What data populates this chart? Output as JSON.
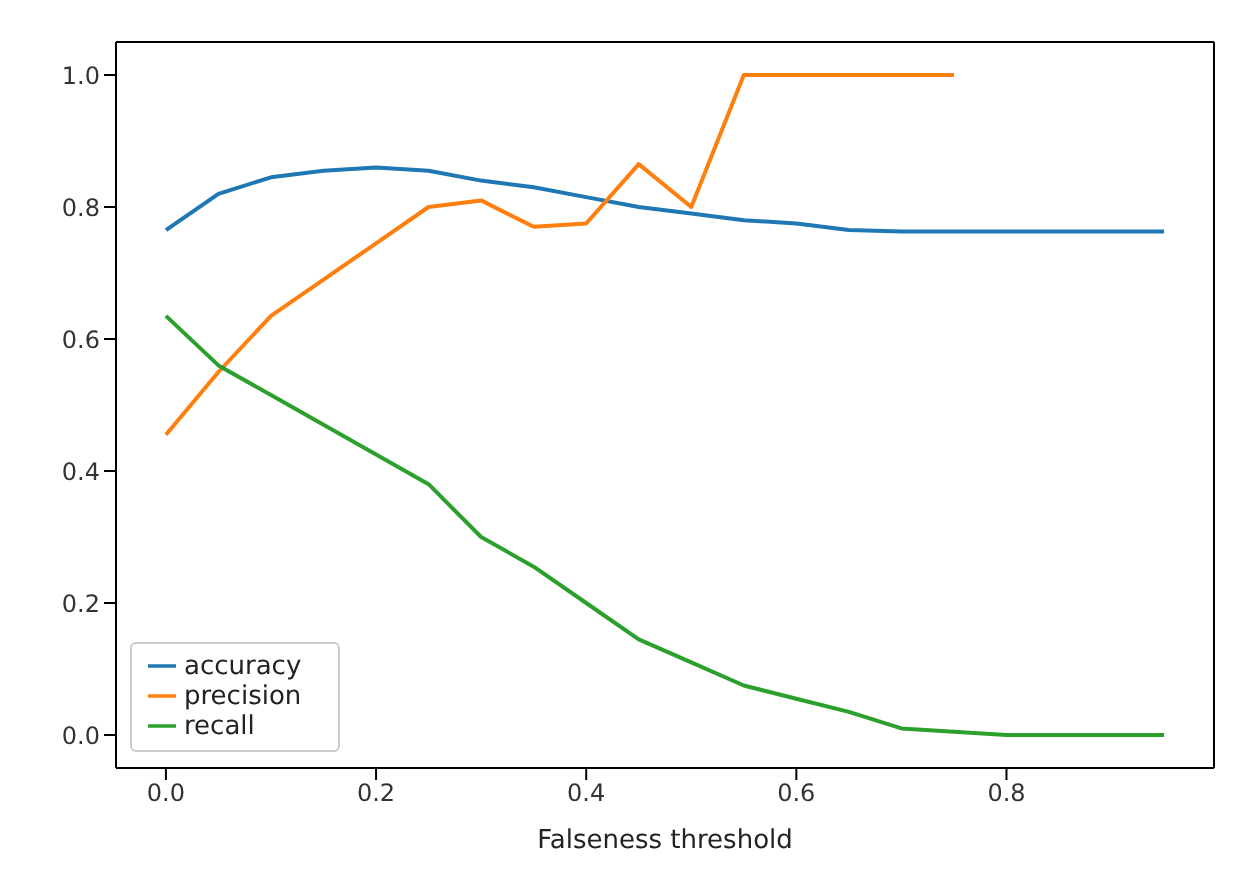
{
  "chart_data": {
    "type": "line",
    "xlabel": "Falseness threshold",
    "x": [
      0,
      0.05,
      0.1,
      0.15,
      0.2,
      0.25,
      0.3,
      0.35,
      0.4,
      0.45,
      0.5,
      0.55,
      0.6,
      0.65,
      0.7,
      0.75,
      0.8,
      0.85,
      0.9,
      0.95
    ],
    "series": [
      {
        "name": "accuracy",
        "color": "#1f77b4",
        "values": [
          0.765,
          0.82,
          0.845,
          0.855,
          0.86,
          0.855,
          0.84,
          0.83,
          0.815,
          0.8,
          0.79,
          0.78,
          0.775,
          0.765,
          0.763,
          0.763,
          0.763,
          0.763,
          0.763,
          0.763
        ]
      },
      {
        "name": "precision",
        "color": "#ff7f0e",
        "values": [
          0.455,
          0.55,
          0.635,
          0.69,
          0.745,
          0.8,
          0.81,
          0.77,
          0.775,
          0.865,
          0.8,
          1.0,
          1.0,
          1.0,
          1.0,
          1.0,
          null,
          null,
          null,
          null
        ]
      },
      {
        "name": "recall",
        "color": "#2ca02c",
        "values": [
          0.635,
          0.56,
          0.515,
          0.47,
          0.425,
          0.38,
          0.3,
          0.255,
          0.2,
          0.145,
          0.11,
          0.075,
          0.055,
          0.035,
          0.01,
          0.005,
          0.0,
          0.0,
          0.0,
          0.0
        ]
      }
    ],
    "xlim": [
      -0.0475,
      0.9975
    ],
    "xticks": [
      {
        "value": 0,
        "label": "0.0"
      },
      0.2,
      0.4,
      0.6,
      0.8
    ],
    "ylim": [
      -0.05,
      1.05
    ],
    "yticks": [
      {
        "value": 0,
        "label": "0.0"
      },
      0.2,
      0.4,
      0.6,
      0.8,
      {
        "value": 1,
        "label": "1.0"
      }
    ],
    "grid": false,
    "legend": "bottom left",
    "marker": "none",
    "line_style": "solid"
  }
}
